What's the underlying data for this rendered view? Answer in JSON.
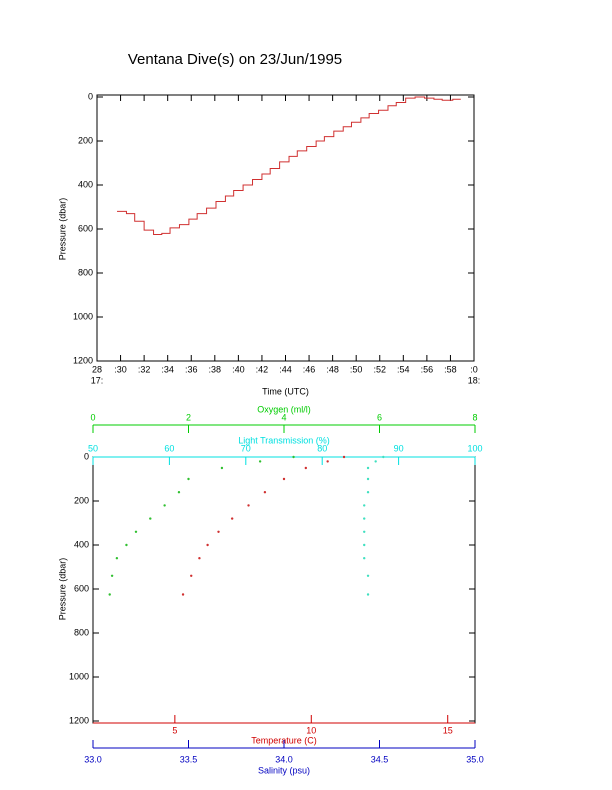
{
  "chart_data": [
    {
      "type": "line",
      "step": true,
      "title": "Ventana Dive(s) on 23/Jun/1995",
      "x_label": "Time (UTC)",
      "y_label": "Pressure (dbar)",
      "color": "#d03030",
      "x": [
        29.7,
        30.5,
        31.2,
        32.0,
        32.8,
        33.5,
        34.2,
        35.0,
        35.8,
        36.5,
        37.3,
        38.1,
        38.9,
        39.6,
        40.4,
        41.2,
        42.0,
        42.7,
        43.5,
        44.3,
        45.0,
        45.8,
        46.6,
        47.3,
        48.1,
        48.9,
        49.6,
        50.4,
        51.1,
        51.9,
        52.7,
        53.4,
        54.2,
        55.0,
        55.8,
        56.6,
        57.3,
        58.2
      ],
      "values": [
        520,
        530,
        565,
        605,
        625,
        620,
        595,
        580,
        555,
        530,
        505,
        475,
        450,
        425,
        400,
        375,
        350,
        325,
        295,
        270,
        245,
        225,
        200,
        180,
        155,
        135,
        115,
        95,
        75,
        60,
        40,
        25,
        5,
        0,
        5,
        10,
        15,
        10
      ],
      "xlim": [
        28,
        60
      ],
      "xticks": [
        28,
        {
          "value": 30,
          "label": ":30"
        },
        {
          "value": 32,
          "label": ":32"
        },
        {
          "value": 34,
          "label": ":34"
        },
        {
          "value": 36,
          "label": ":36"
        },
        {
          "value": 38,
          "label": ":38"
        },
        {
          "value": 40,
          "label": ":40"
        },
        {
          "value": 42,
          "label": ":42"
        },
        {
          "value": 44,
          "label": ":44"
        },
        {
          "value": 46,
          "label": ":46"
        },
        {
          "value": 48,
          "label": ":48"
        },
        {
          "value": 50,
          "label": ":50"
        },
        {
          "value": 52,
          "label": ":52"
        },
        {
          "value": 54,
          "label": ":54"
        },
        {
          "value": 56,
          "label": ":56"
        },
        {
          "value": 58,
          "label": ":58"
        },
        {
          "value": 60,
          "label": ":0"
        }
      ],
      "xtick_hours": [
        {
          "value": 28,
          "label": "17:"
        },
        {
          "value": 60,
          "label": "18:"
        }
      ],
      "ylim": [
        1200,
        0
      ],
      "yticks": [
        0,
        200,
        400,
        600,
        800,
        1000,
        1200
      ]
    },
    {
      "type": "profile",
      "y_label": "Pressure (dbar)",
      "ylim": [
        1200,
        0
      ],
      "yticks": [
        0,
        200,
        400,
        600,
        800,
        1000,
        1200
      ],
      "axes": [
        {
          "label": "Oxygen (ml/l)",
          "color": "#00cc00",
          "lim": [
            0,
            8
          ],
          "ticks": [
            0,
            2,
            4,
            6,
            8
          ]
        },
        {
          "label": "Light Transmission (%)",
          "color": "#00e0e0",
          "lim": [
            50,
            100
          ],
          "ticks": [
            50,
            60,
            70,
            80,
            90,
            100
          ]
        },
        {
          "label": "Temperature (C)",
          "color": "#d00000",
          "lim": [
            2,
            16
          ],
          "ticks": [
            5,
            10,
            15
          ]
        },
        {
          "label": "Salinity (psu)",
          "color": "#0000c0",
          "lim": [
            33,
            35
          ],
          "ticks": [
            {
              "value": 33,
              "label": "33.0"
            },
            {
              "value": 33.5,
              "label": "33.5"
            },
            {
              "value": 34,
              "label": "34.0"
            },
            {
              "value": 34.5,
              "label": "34.5"
            },
            {
              "value": 35,
              "label": "35.0"
            }
          ]
        }
      ],
      "series": [
        {
          "axis": 2,
          "color": "#d03030",
          "x": [
            11.2,
            10.6,
            9.8,
            9.0,
            8.3,
            7.7,
            7.1,
            6.6,
            6.2,
            5.9,
            5.6,
            5.3
          ],
          "y": [
            0,
            20,
            50,
            100,
            160,
            220,
            280,
            340,
            400,
            460,
            540,
            625
          ]
        },
        {
          "axis": 0,
          "color": "#30c030",
          "x": [
            4.2,
            3.5,
            2.7,
            2.0,
            1.8,
            1.5,
            1.2,
            0.9,
            0.7,
            0.5,
            0.4,
            0.35
          ],
          "y": [
            0,
            20,
            50,
            100,
            160,
            220,
            280,
            340,
            400,
            460,
            540,
            625
          ]
        },
        {
          "axis": 1,
          "color": "#40e0c0",
          "x": [
            88,
            87,
            86,
            86,
            86,
            85.5,
            85.5,
            85.5,
            85.5,
            85.5,
            86,
            86
          ],
          "y": [
            0,
            20,
            50,
            100,
            160,
            220,
            280,
            340,
            400,
            460,
            540,
            625
          ]
        }
      ]
    }
  ]
}
